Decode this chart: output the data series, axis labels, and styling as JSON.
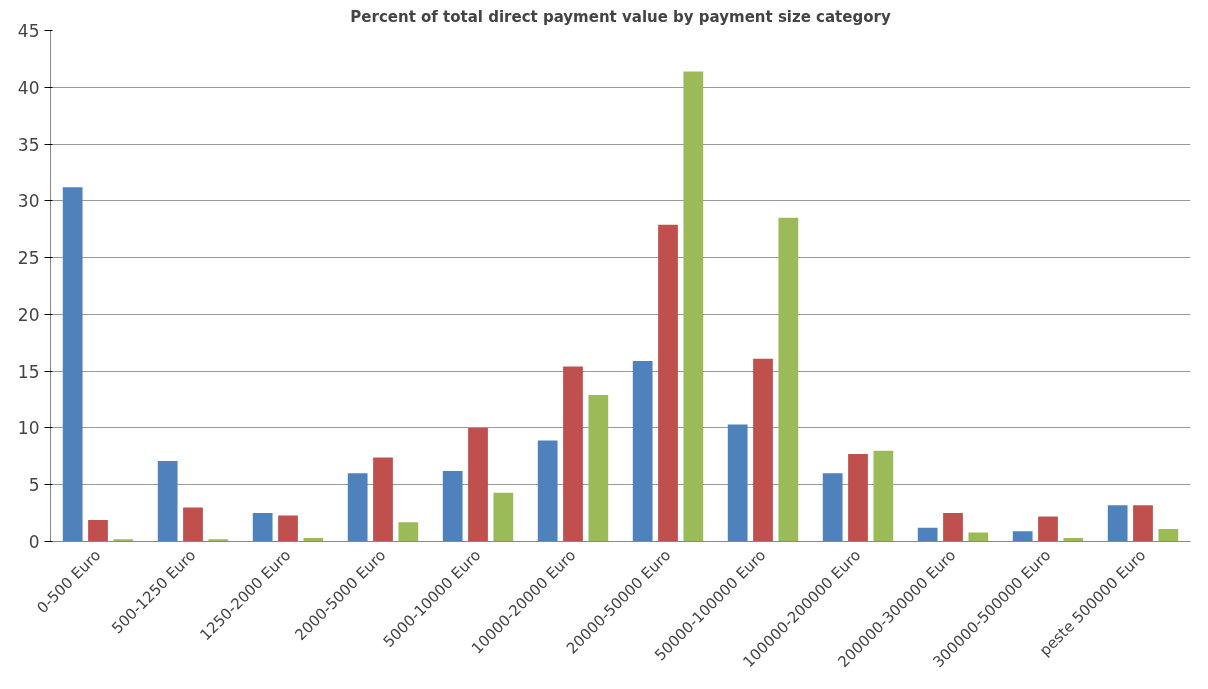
{
  "chart_data": {
    "type": "bar",
    "title": "Percent of total direct payment value by payment size category",
    "categories": [
      "0-500 Euro",
      "500-1250 Euro",
      "1250-2000 Euro",
      "2000-5000 Euro",
      "5000-10000 Euro",
      "10000-20000 Euro",
      "20000-50000 Euro",
      "50000-100000 Euro",
      "100000-200000 Euro",
      "200000-300000 Euro",
      "300000-500000 Euro",
      "peste 500000 Euro"
    ],
    "series": [
      {
        "color": "#4f81bd",
        "values": [
          31.2,
          7.1,
          2.5,
          6.0,
          6.2,
          8.9,
          15.9,
          10.3,
          6.0,
          1.2,
          0.9,
          3.2
        ]
      },
      {
        "color": "#c0504d",
        "values": [
          1.9,
          3.0,
          2.3,
          7.4,
          10.0,
          15.4,
          27.9,
          16.1,
          7.7,
          2.5,
          2.2,
          3.2
        ]
      },
      {
        "color": "#9bbb59",
        "values": [
          0.2,
          0.2,
          0.3,
          1.7,
          4.3,
          12.9,
          41.4,
          28.5,
          8.0,
          0.8,
          0.3,
          1.1
        ]
      }
    ],
    "ylim": [
      0,
      45
    ],
    "yticks": [
      0,
      5,
      10,
      15,
      20,
      25,
      30,
      35,
      40,
      45
    ],
    "grid": "y"
  }
}
